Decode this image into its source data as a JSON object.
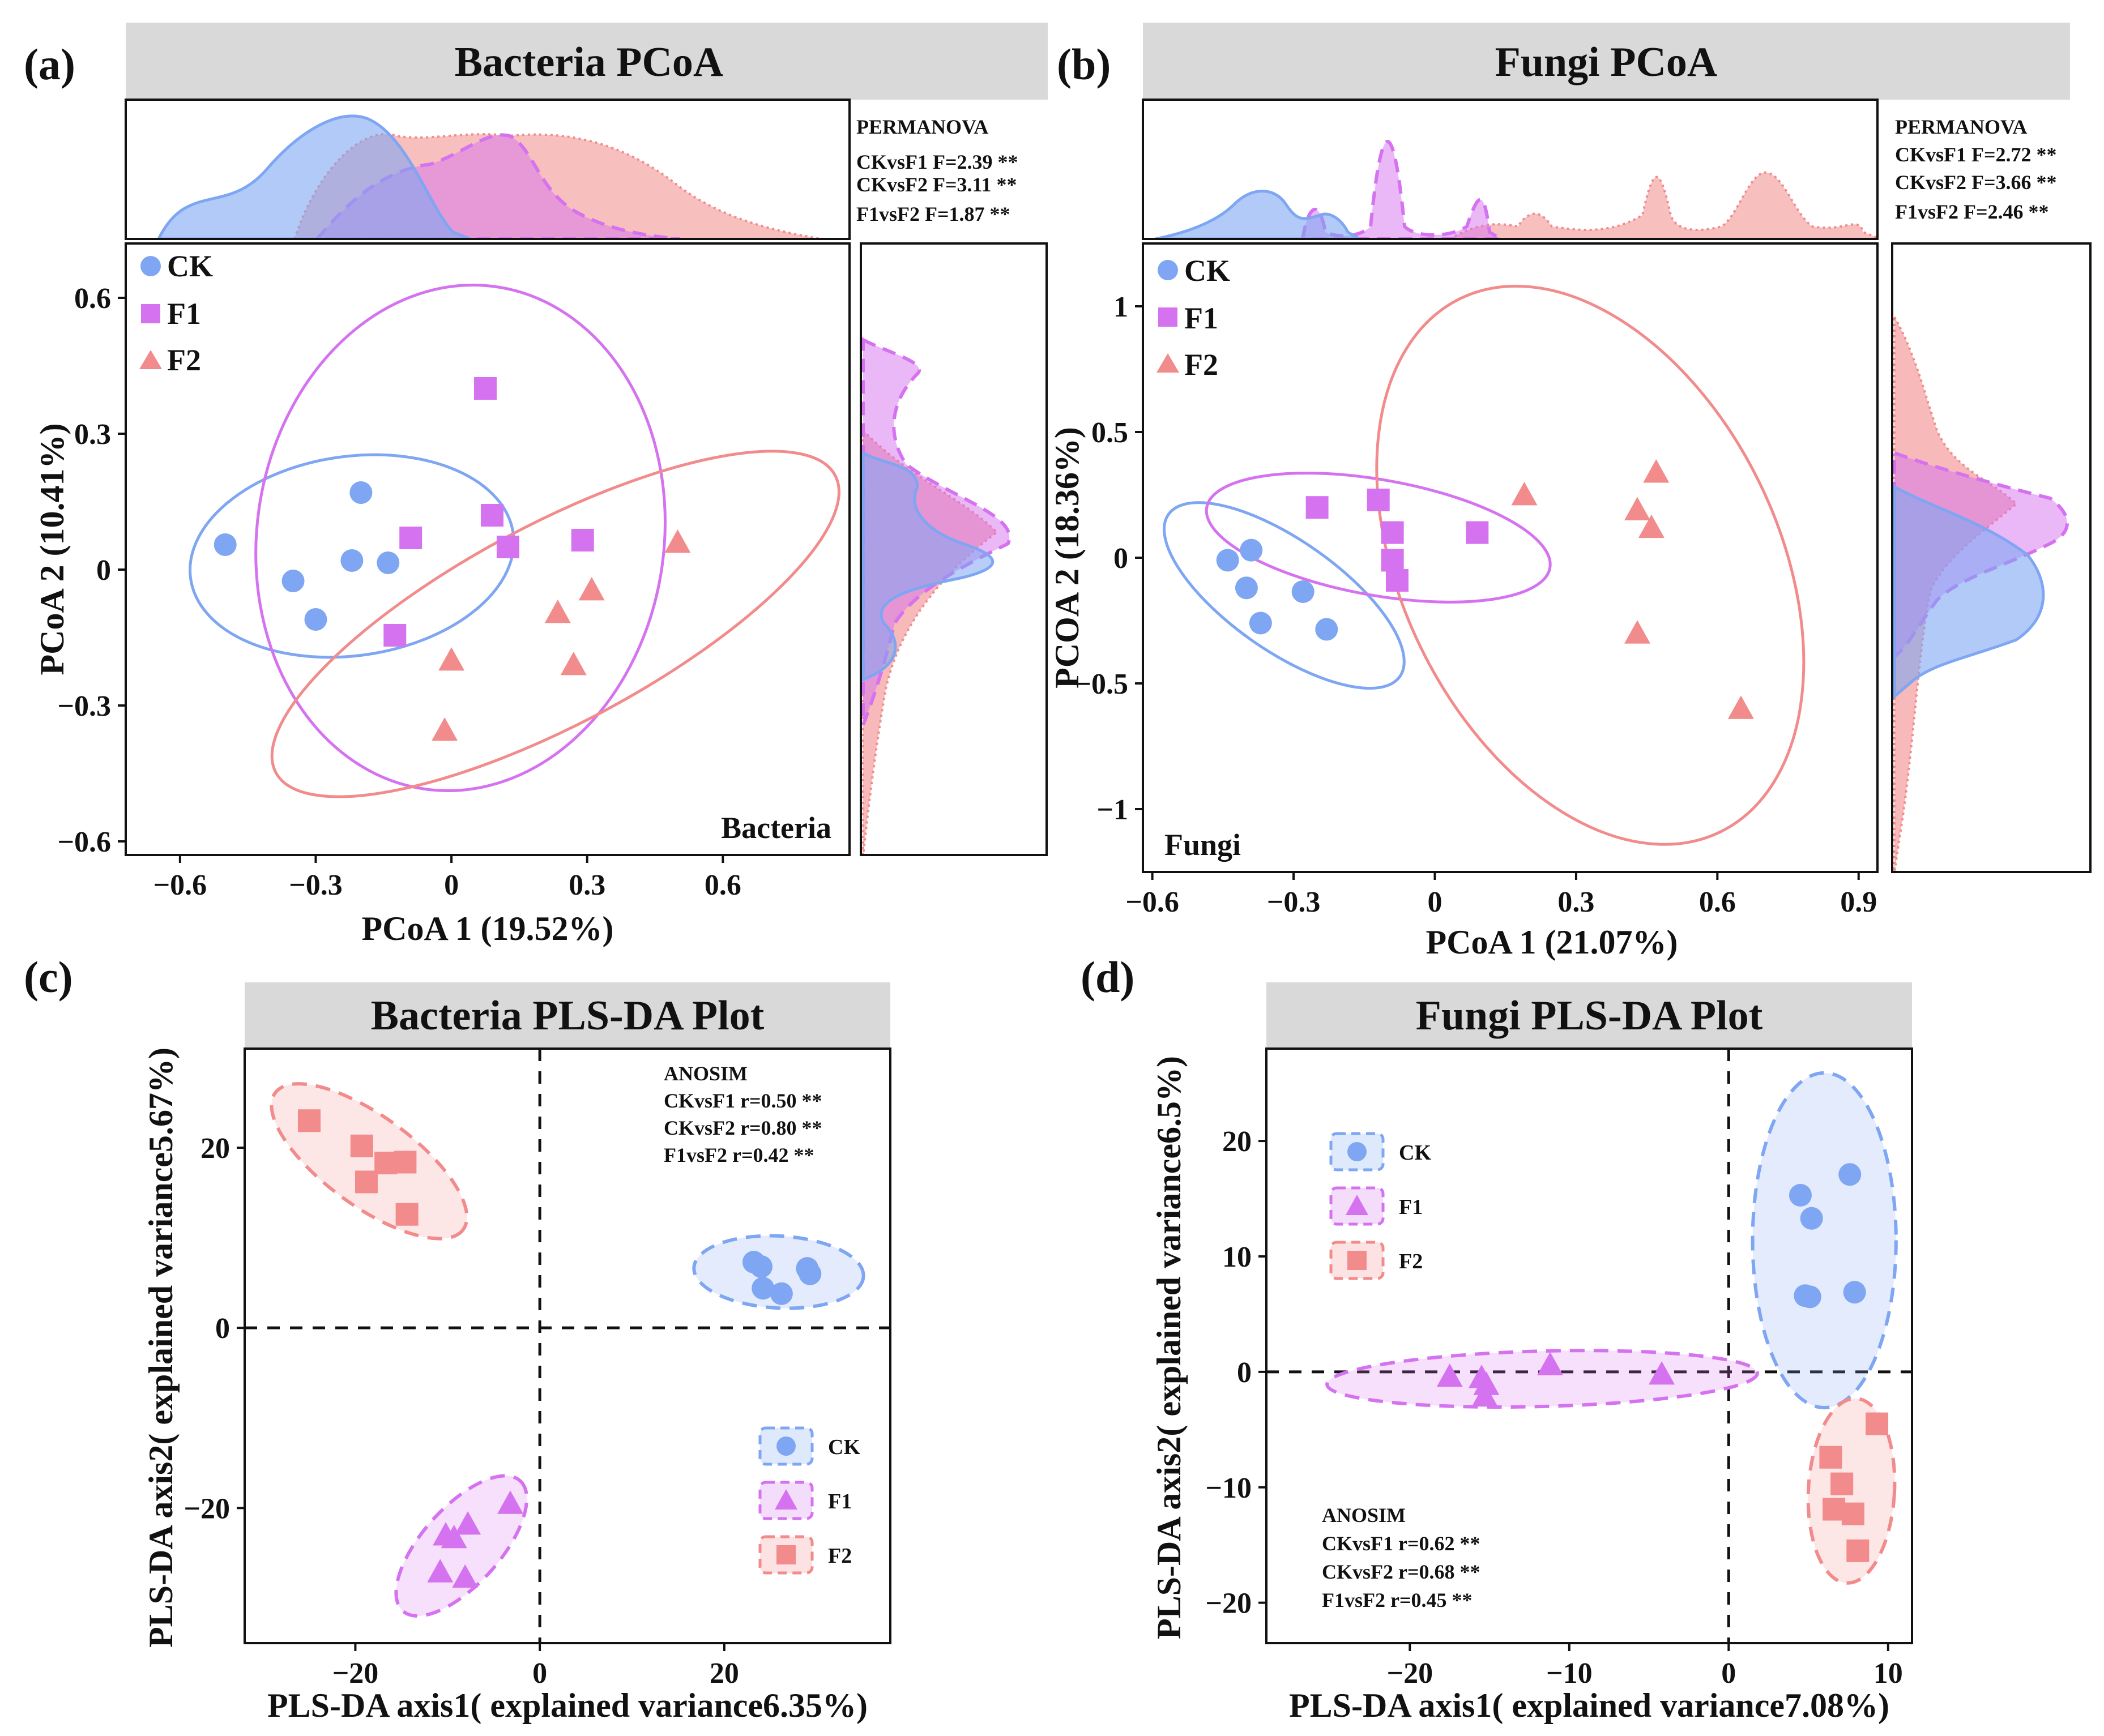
{
  "colors": {
    "CK": "#7ea6f2",
    "F1": "#d572f0",
    "F2": "#f28b8b",
    "strip": "#d9d9d9"
  },
  "chart_data": [
    {
      "panel": "(a)",
      "type": "scatter",
      "title": "Bacteria PCoA",
      "corner_label": "Bacteria",
      "xlabel": "PCoA 1 (19.52%)",
      "ylabel": "PCoA 2 (10.41%)",
      "xlim": [
        -0.72,
        0.88
      ],
      "ylim": [
        -0.63,
        0.72
      ],
      "xticks": [
        -0.6,
        -0.3,
        0,
        0.3,
        0.6
      ],
      "xtick_labels": [
        "−0.6",
        "−0.3",
        "0",
        "0.3",
        "0.6"
      ],
      "yticks": [
        -0.6,
        -0.3,
        0,
        0.3,
        0.6
      ],
      "ytick_labels": [
        "−0.6",
        "−0.3",
        "0",
        "0.3",
        "0.6"
      ],
      "test_name": "PERMANOVA",
      "tests": [
        "CKvsF1 F=2.39 **",
        "CKvsF2 F=3.11 **",
        "F1vsF2  F=1.87 **"
      ],
      "legend": [
        "CK",
        "F1",
        "F2"
      ],
      "series": [
        {
          "name": "CK",
          "marker": "circle",
          "points": [
            [
              -0.5,
              0.055
            ],
            [
              -0.35,
              -0.025
            ],
            [
              -0.3,
              -0.11
            ],
            [
              -0.22,
              0.02
            ],
            [
              -0.2,
              0.17
            ],
            [
              -0.14,
              0.015
            ]
          ],
          "ellipse": {
            "center": [
              -0.22,
              0.03
            ],
            "semi_axes": [
              0.36,
              0.22
            ],
            "angle_deg": 8
          }
        },
        {
          "name": "F1",
          "marker": "square",
          "points": [
            [
              0.075,
              0.4
            ],
            [
              0.09,
              0.12
            ],
            [
              0.125,
              0.05
            ],
            [
              0.29,
              0.065
            ],
            [
              -0.09,
              0.07
            ],
            [
              -0.125,
              -0.145
            ]
          ],
          "ellipse": {
            "center": [
              0.02,
              0.07
            ],
            "semi_axes": [
              0.45,
              0.56
            ],
            "angle_deg": -8
          }
        },
        {
          "name": "F2",
          "marker": "triangle",
          "points": [
            [
              0.5,
              0.06
            ],
            [
              0.31,
              -0.045
            ],
            [
              0.235,
              -0.095
            ],
            [
              0.27,
              -0.21
            ],
            [
              0.0,
              -0.2
            ],
            [
              -0.015,
              -0.355
            ]
          ],
          "ellipse": {
            "center": [
              0.23,
              -0.12
            ],
            "semi_axes": [
              0.7,
              0.22
            ],
            "angle_deg": 28
          }
        }
      ]
    },
    {
      "panel": "(b)",
      "type": "scatter",
      "title": "Fungi PCoA",
      "corner_label": "Fungi",
      "xlabel": "PCoA 1 (21.07%)",
      "ylabel": "PCOA 2 (18.36%)",
      "xlim": [
        -0.62,
        0.94
      ],
      "ylim": [
        -1.25,
        1.25
      ],
      "xticks": [
        -0.6,
        -0.3,
        0,
        0.3,
        0.6,
        0.9
      ],
      "xtick_labels": [
        "−0.6",
        "−0.3",
        "0",
        "0.3",
        "0.6",
        "0.9"
      ],
      "yticks": [
        -1,
        -0.5,
        0,
        0.5,
        1
      ],
      "ytick_labels": [
        "−1",
        "−0.5",
        "0",
        "0.5",
        "1"
      ],
      "test_name": "PERMANOVA",
      "tests": [
        "CKvsF1 F=2.72 **",
        "CKvsF2 F=3.66 **",
        "F1vsF2  F=2.46 **"
      ],
      "legend": [
        "CK",
        "F1",
        "F2"
      ],
      "series": [
        {
          "name": "CK",
          "marker": "circle",
          "points": [
            [
              -0.44,
              -0.01
            ],
            [
              -0.39,
              0.03
            ],
            [
              -0.4,
              -0.12
            ],
            [
              -0.37,
              -0.26
            ],
            [
              -0.28,
              -0.135
            ],
            [
              -0.23,
              -0.285
            ]
          ],
          "ellipse": {
            "center": [
              -0.32,
              -0.15
            ],
            "semi_axes": [
              0.3,
              0.22
            ],
            "angle_deg": -35
          }
        },
        {
          "name": "F1",
          "marker": "square",
          "points": [
            [
              -0.25,
              0.2
            ],
            [
              -0.12,
              0.23
            ],
            [
              -0.09,
              0.1
            ],
            [
              -0.09,
              -0.01
            ],
            [
              -0.08,
              -0.09
            ],
            [
              0.09,
              0.1
            ]
          ],
          "ellipse": {
            "center": [
              -0.12,
              0.08
            ],
            "semi_axes": [
              0.37,
              0.23
            ],
            "angle_deg": -10
          }
        },
        {
          "name": "F2",
          "marker": "triangle",
          "points": [
            [
              0.19,
              0.25
            ],
            [
              0.47,
              0.34
            ],
            [
              0.43,
              0.19
            ],
            [
              0.46,
              0.12
            ],
            [
              0.43,
              -0.3
            ],
            [
              0.65,
              -0.6
            ]
          ],
          "ellipse": {
            "center": [
              0.33,
              -0.03
            ],
            "semi_axes": [
              0.4,
              1.18
            ],
            "angle_deg": 26
          }
        }
      ]
    },
    {
      "panel": "(c)",
      "type": "scatter",
      "title": "Bacteria PLS-DA Plot",
      "xlabel": "PLS-DA axis1( explained variance6.35%)",
      "ylabel": "PLS-DA axis2( explained variance5.67%)",
      "xlim": [
        -32,
        38
      ],
      "ylim": [
        -35,
        31
      ],
      "xticks": [
        -20,
        0,
        20
      ],
      "xtick_labels": [
        "−20",
        "0",
        "20"
      ],
      "yticks": [
        -20,
        0,
        20
      ],
      "ytick_labels": [
        "−20",
        "0",
        "20"
      ],
      "test_name": "ANOSIM",
      "tests": [
        "CKvsF1 r=0.50 **",
        "CKvsF2 r=0.80 **",
        "F1vsF2  r=0.42 **"
      ],
      "legend": [
        "CK",
        "F1",
        "F2"
      ],
      "series": [
        {
          "name": "CK",
          "marker": "circle",
          "points": [
            [
              23.2,
              7.3
            ],
            [
              24,
              6.8
            ],
            [
              24.2,
              4.4
            ],
            [
              26.2,
              3.8
            ],
            [
              29,
              6.6
            ],
            [
              29.3,
              6.0
            ]
          ],
          "ellipse": {
            "center": [
              25.9,
              6.2
            ],
            "semi_axes": [
              9.2,
              4.0
            ],
            "angle_deg": -3
          }
        },
        {
          "name": "F1",
          "marker": "triangle",
          "points": [
            [
              -3.2,
              -19.5
            ],
            [
              -7.8,
              -21.8
            ],
            [
              -9.3,
              -23.3
            ],
            [
              -10.2,
              -23.0
            ],
            [
              -8.1,
              -27.7
            ],
            [
              -10.8,
              -27.1
            ]
          ],
          "ellipse": {
            "center": [
              -8.5,
              -24.2
            ],
            "semi_axes": [
              9.5,
              4.3
            ],
            "angle_deg": 48
          }
        },
        {
          "name": "F2",
          "marker": "square",
          "points": [
            [
              -25,
              23
            ],
            [
              -19.3,
              20.2
            ],
            [
              -16.7,
              18.3
            ],
            [
              -18.8,
              16.2
            ],
            [
              -14.4,
              12.6
            ],
            [
              -14.6,
              18.4
            ]
          ],
          "ellipse": {
            "center": [
              -18.5,
              18.5
            ],
            "semi_axes": [
              12.6,
              5.0
            ],
            "angle_deg": -36
          }
        }
      ]
    },
    {
      "panel": "(d)",
      "type": "scatter",
      "title": "Fungi PLS-DA Plot",
      "xlabel": "PLS-DA axis1( explained variance7.08%)",
      "ylabel": "PLS-DA axis2( explained variance6.5%)",
      "xlim": [
        -29,
        11.5
      ],
      "ylim": [
        -23.5,
        28
      ],
      "xticks": [
        -20,
        -10,
        0,
        10
      ],
      "xtick_labels": [
        "−20",
        "−10",
        "0",
        "10"
      ],
      "yticks": [
        -20,
        -10,
        0,
        10,
        20
      ],
      "ytick_labels": [
        "−20",
        "−10",
        "0",
        "10",
        "20"
      ],
      "test_name": "ANOSIM",
      "tests": [
        "CKvsF1 r=0.62 **",
        "CKvsF2 r=0.68 **",
        "F1vsF2  r=0.45 **"
      ],
      "legend": [
        "CK",
        "F1",
        "F2"
      ],
      "series": [
        {
          "name": "CK",
          "marker": "circle",
          "points": [
            [
              4.5,
              15.3
            ],
            [
              5.2,
              13.3
            ],
            [
              7.6,
              17.1
            ],
            [
              4.8,
              6.6
            ],
            [
              5.1,
              6.5
            ],
            [
              7.9,
              6.9
            ]
          ],
          "ellipse": {
            "center": [
              6.0,
              11.4
            ],
            "semi_axes": [
              4.5,
              14.5
            ],
            "angle_deg": 0
          }
        },
        {
          "name": "F1",
          "marker": "triangle",
          "points": [
            [
              -17.5,
              -0.4
            ],
            [
              -15.5,
              -0.5
            ],
            [
              -15.2,
              -1.1
            ],
            [
              -15.3,
              -2.1
            ],
            [
              -11.2,
              0.6
            ],
            [
              -4.2,
              -0.2
            ]
          ],
          "ellipse": {
            "center": [
              -11.7,
              -0.6
            ],
            "semi_axes": [
              13.5,
              2.4
            ],
            "angle_deg": 1.5
          }
        },
        {
          "name": "F2",
          "marker": "square",
          "points": [
            [
              9.3,
              -4.5
            ],
            [
              6.4,
              -7.4
            ],
            [
              7.1,
              -9.7
            ],
            [
              6.6,
              -11.9
            ],
            [
              7.8,
              -12.3
            ],
            [
              8.1,
              -15.5
            ]
          ],
          "ellipse": {
            "center": [
              7.7,
              -10.3
            ],
            "semi_axes": [
              2.7,
              8.0
            ],
            "angle_deg": -3
          }
        }
      ]
    }
  ]
}
